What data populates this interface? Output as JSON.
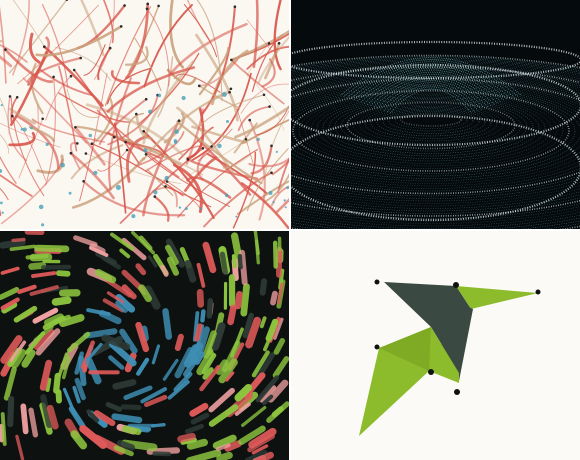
{
  "tiles": [
    {
      "id": "branching-strands",
      "background": "#fbf8f2",
      "palette": [
        "#d8554a",
        "#c9a07a",
        "#4aa0b8",
        "#2b2b2b"
      ]
    },
    {
      "id": "wireframe-wave-surface",
      "background": "#050a0c",
      "palette": [
        "#7fd0dc",
        "#3e8fa0",
        "#e8f7fa"
      ]
    },
    {
      "id": "swirling-brush-strokes",
      "background": "#0d1210",
      "palette": [
        "#3f8fb5",
        "#8ec63f",
        "#e05a5a",
        "#f0a0a0",
        "#2e3a36"
      ]
    },
    {
      "id": "geometric-bird",
      "background": "#fbfaf6",
      "palette": [
        "#8cbb2c",
        "#3a4a42",
        "#111111"
      ]
    }
  ]
}
